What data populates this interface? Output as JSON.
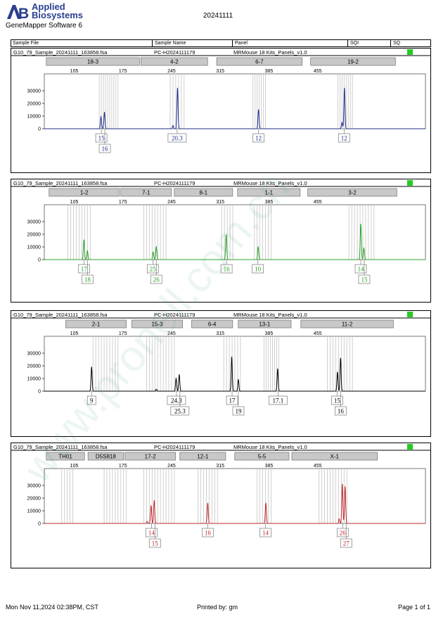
{
  "header": {
    "logo_line1": "Applied",
    "logo_line2": "Biosystems",
    "software": "GeneMapper Software 6",
    "date": "20241111"
  },
  "columns": [
    "Sample File",
    "Sample Name",
    "Panel",
    "SQI",
    "SQ"
  ],
  "sample": {
    "file": "G10_79_Sample_20241111_163858.fsa",
    "name": "PC-H2024111179",
    "panel": "MRMouse 18 Kits_Panels_v1.0",
    "status_color": "#22cc22"
  },
  "watermark": "www.pronell.com.cn",
  "footer": {
    "datetime": "Mon Nov 11,2024 02:38PM, CST",
    "printed_by": "Printed by: gm",
    "page": "Page 1 of 1"
  },
  "chart_data": [
    {
      "type": "line",
      "color": "#1f2d8a",
      "xlim": [
        62,
        610
      ],
      "ylim": [
        0,
        40000
      ],
      "x_ticks": [
        105,
        175,
        245,
        315,
        385,
        455
      ],
      "y_ticks": [
        0,
        10000,
        20000,
        30000
      ],
      "grid": false,
      "markers": [
        {
          "label": "18-3",
          "x_start": 80,
          "x_end": 214
        },
        {
          "label": "4-2",
          "x_start": 216,
          "x_end": 312
        },
        {
          "label": "6-7",
          "x_start": 325,
          "x_end": 448
        },
        {
          "label": "19-2",
          "x_start": 460,
          "x_end": 582
        }
      ],
      "bins": [
        141,
        144,
        147,
        150,
        153,
        156,
        159,
        162,
        165,
        168,
        243,
        247,
        251,
        255,
        259,
        263,
        362,
        365,
        368,
        371,
        374,
        377,
        380,
        484,
        487,
        490,
        493,
        496,
        499,
        502,
        505
      ],
      "peaks": [
        {
          "x": 143.5,
          "y": 9500
        },
        {
          "x": 148.5,
          "y": 13000
        },
        {
          "x": 247,
          "y": 2500
        },
        {
          "x": 253.5,
          "y": 32000
        },
        {
          "x": 370,
          "y": 15000
        },
        {
          "x": 490,
          "y": 5000
        },
        {
          "x": 493.5,
          "y": 32000
        }
      ],
      "alleles": [
        {
          "label": "15",
          "x": 144,
          "row": 1
        },
        {
          "label": "16",
          "x": 149,
          "row": 2
        },
        {
          "label": "20.3",
          "x": 253,
          "row": 1
        },
        {
          "label": "12",
          "x": 370,
          "row": 1
        },
        {
          "label": "12",
          "x": 493,
          "row": 1
        }
      ]
    },
    {
      "type": "line",
      "color": "#2aa02a",
      "xlim": [
        62,
        610
      ],
      "ylim": [
        0,
        40000
      ],
      "x_ticks": [
        105,
        175,
        245,
        315,
        385,
        455
      ],
      "y_ticks": [
        0,
        10000,
        20000,
        30000
      ],
      "grid": false,
      "markers": [
        {
          "label": "1-2",
          "x_start": 84,
          "x_end": 185
        },
        {
          "label": "7-1",
          "x_start": 187,
          "x_end": 260
        },
        {
          "label": "8-1",
          "x_start": 264,
          "x_end": 348
        },
        {
          "label": "1-1",
          "x_start": 355,
          "x_end": 445
        },
        {
          "label": "3-2",
          "x_start": 456,
          "x_end": 584
        }
      ],
      "bins": [
        96,
        100,
        104,
        108,
        112,
        116,
        120,
        124,
        128,
        205,
        209,
        213,
        217,
        221,
        225,
        229,
        233,
        237,
        317,
        321,
        325,
        329,
        333,
        364,
        368,
        372,
        376,
        380,
        384,
        388,
        500,
        504,
        508,
        512,
        516,
        520,
        524,
        528,
        532,
        536
      ],
      "peaks": [
        {
          "x": 119,
          "y": 15500
        },
        {
          "x": 124,
          "y": 7000
        },
        {
          "x": 218.5,
          "y": 6000
        },
        {
          "x": 223,
          "y": 10000
        },
        {
          "x": 323.5,
          "y": 19500
        },
        {
          "x": 369.5,
          "y": 10000
        },
        {
          "x": 517,
          "y": 28000
        },
        {
          "x": 521.5,
          "y": 9000
        }
      ],
      "alleles": [
        {
          "label": "17",
          "x": 119,
          "row": 1
        },
        {
          "label": "18",
          "x": 124,
          "row": 2
        },
        {
          "label": "25",
          "x": 218,
          "row": 1
        },
        {
          "label": "26",
          "x": 223,
          "row": 2
        },
        {
          "label": "16",
          "x": 324,
          "row": 1
        },
        {
          "label": "10",
          "x": 369,
          "row": 1
        },
        {
          "label": "14",
          "x": 517,
          "row": 1
        },
        {
          "label": "15",
          "x": 522,
          "row": 2
        }
      ]
    },
    {
      "type": "line",
      "color": "#000000",
      "xlim": [
        62,
        610
      ],
      "ylim": [
        0,
        40000
      ],
      "x_ticks": [
        105,
        175,
        245,
        315,
        385,
        455
      ],
      "y_ticks": [
        0,
        10000,
        20000,
        30000
      ],
      "grid": false,
      "markers": [
        {
          "label": "2-1",
          "x_start": 108,
          "x_end": 195
        },
        {
          "label": "15-3",
          "x_start": 203,
          "x_end": 276
        },
        {
          "label": "6-4",
          "x_start": 289,
          "x_end": 348
        },
        {
          "label": "13-1",
          "x_start": 356,
          "x_end": 432
        },
        {
          "label": "11-2",
          "x_start": 446,
          "x_end": 579
        }
      ],
      "bins": [
        132,
        136,
        140,
        144,
        148,
        152,
        156,
        160,
        164,
        168,
        209,
        213,
        217,
        221,
        225,
        229,
        233,
        237,
        241,
        245,
        249,
        320,
        324,
        328,
        332,
        336,
        340,
        344,
        378,
        381,
        384,
        387,
        390,
        393,
        396,
        399,
        469,
        473,
        477,
        481,
        485,
        489,
        493,
        497,
        501,
        505
      ],
      "peaks": [
        {
          "x": 130,
          "y": 19000
        },
        {
          "x": 223,
          "y": 1500
        },
        {
          "x": 251.5,
          "y": 10000
        },
        {
          "x": 256,
          "y": 13000
        },
        {
          "x": 331.5,
          "y": 27000
        },
        {
          "x": 341,
          "y": 9000
        },
        {
          "x": 397.5,
          "y": 17500
        },
        {
          "x": 483.5,
          "y": 15000
        },
        {
          "x": 488,
          "y": 26000
        }
      ],
      "alleles": [
        {
          "label": "9",
          "x": 130,
          "row": 1
        },
        {
          "label": "24.3",
          "x": 252,
          "row": 1
        },
        {
          "label": "25.3",
          "x": 257,
          "row": 2
        },
        {
          "label": "17",
          "x": 332,
          "row": 1
        },
        {
          "label": "19",
          "x": 341,
          "row": 2
        },
        {
          "label": "17.1",
          "x": 398,
          "row": 1
        },
        {
          "label": "15",
          "x": 483,
          "row": 1
        },
        {
          "label": "16",
          "x": 488,
          "row": 2
        }
      ]
    },
    {
      "type": "line",
      "color": "#c0282a",
      "xlim": [
        62,
        610
      ],
      "ylim": [
        0,
        40000
      ],
      "x_ticks": [
        105,
        175,
        245,
        315,
        385,
        455
      ],
      "y_ticks": [
        0,
        10000,
        20000,
        30000
      ],
      "grid": false,
      "markers": [
        {
          "label": "TH01",
          "x_start": 80,
          "x_end": 135
        },
        {
          "label": "D5S818",
          "x_start": 140,
          "x_end": 191
        },
        {
          "label": "17-2",
          "x_start": 193,
          "x_end": 266
        },
        {
          "label": "12-1",
          "x_start": 272,
          "x_end": 338
        },
        {
          "label": "5-5",
          "x_start": 351,
          "x_end": 429
        },
        {
          "label": "X-1",
          "x_start": 433,
          "x_end": 556
        }
      ],
      "bins": [
        87,
        91,
        95,
        99,
        103,
        148,
        152,
        156,
        160,
        164,
        168,
        172,
        176,
        180,
        205,
        209,
        213,
        217,
        221,
        225,
        229,
        233,
        237,
        241,
        245,
        249,
        283,
        287,
        291,
        295,
        299,
        303,
        307,
        311,
        368,
        372,
        376,
        380,
        384,
        388,
        457,
        461,
        465,
        469,
        473,
        477,
        481,
        485,
        489,
        493,
        497
      ],
      "peaks": [
        {
          "x": 210,
          "y": 1500
        },
        {
          "x": 215.5,
          "y": 14000
        },
        {
          "x": 220,
          "y": 18000
        },
        {
          "x": 297,
          "y": 16000
        },
        {
          "x": 380.5,
          "y": 16000
        },
        {
          "x": 486,
          "y": 3500
        },
        {
          "x": 490.5,
          "y": 31000
        },
        {
          "x": 494.5,
          "y": 29000
        }
      ],
      "alleles": [
        {
          "label": "14",
          "x": 216,
          "row": 1
        },
        {
          "label": "15",
          "x": 221,
          "row": 2
        },
        {
          "label": "16",
          "x": 297,
          "row": 1
        },
        {
          "label": "14",
          "x": 380,
          "row": 1
        },
        {
          "label": "26",
          "x": 491,
          "row": 1
        },
        {
          "label": "27",
          "x": 496,
          "row": 2
        }
      ]
    }
  ]
}
